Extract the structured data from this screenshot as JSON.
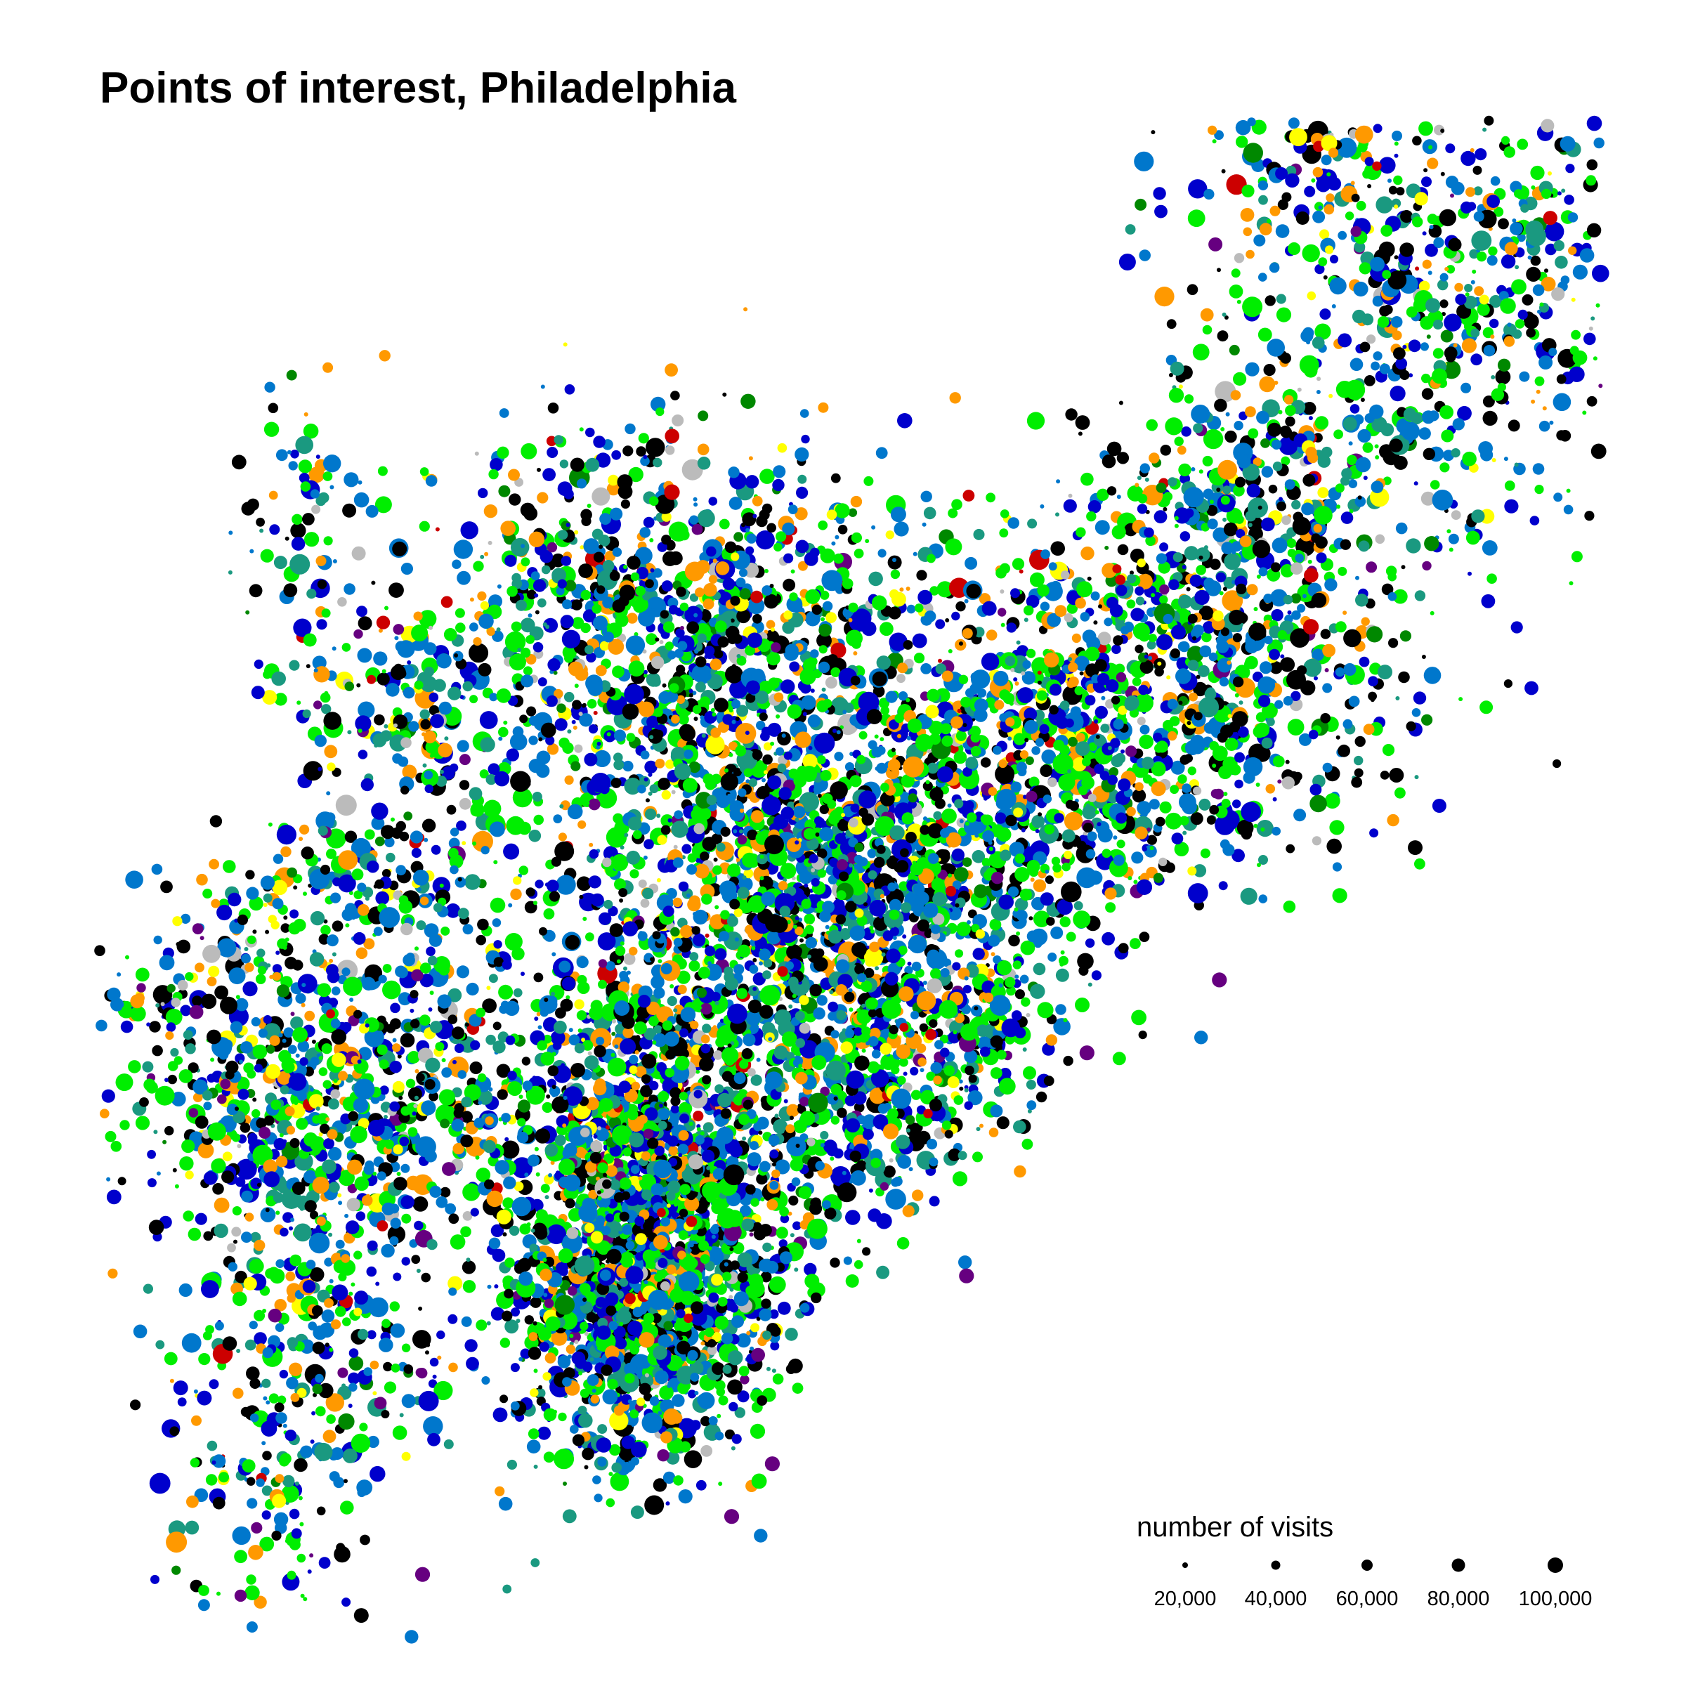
{
  "title": "Points of interest, Philadelphia",
  "map": {
    "region": "Philadelphia",
    "point_colors": [
      "#000000",
      "#0000cc",
      "#0077cc",
      "#00ee00",
      "#1a9980",
      "#ff9900",
      "#ffff00",
      "#660080",
      "#008800",
      "#bbbbbb",
      "#cc0000"
    ]
  },
  "legend": {
    "title": "number of visits",
    "keys": [
      {
        "value": 20000,
        "label": "20,000"
      },
      {
        "value": 40000,
        "label": "40,000"
      },
      {
        "value": 60000,
        "label": "60,000"
      },
      {
        "value": 80000,
        "label": "80,000"
      },
      {
        "value": 100000,
        "label": "100,000"
      }
    ]
  }
}
